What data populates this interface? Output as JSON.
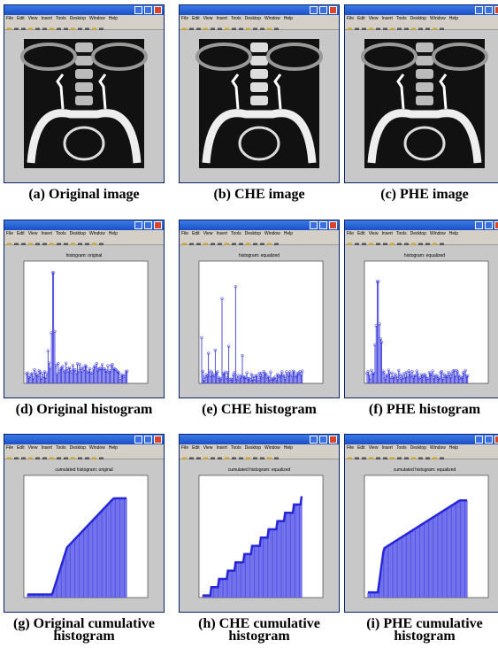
{
  "menu": [
    "File",
    "Edit",
    "View",
    "Insert",
    "Tools",
    "Desktop",
    "Window",
    "Help"
  ],
  "rows": [
    {
      "panels": [
        {
          "caption": "(a) Original image"
        },
        {
          "caption": "(b) CHE image"
        },
        {
          "caption": "(c) PHE image"
        }
      ]
    },
    {
      "panels": [
        {
          "plot_title": "histogram: original",
          "caption": "(d) Original histogram"
        },
        {
          "plot_title": "histogram: equalized",
          "caption": "(e) CHE histogram"
        },
        {
          "plot_title": "histogram: equalized",
          "caption": "(f) PHE histogram"
        }
      ]
    },
    {
      "panels": [
        {
          "plot_title": "cumulated histogram: original",
          "caption": "(g) Original cumulative histogram"
        },
        {
          "plot_title": "cumulated histogram: equalized",
          "caption": "(h) CHE cumulative histogram"
        },
        {
          "plot_title": "cumulated histogram: equalized",
          "caption": "(i) PHE cumulative histogram"
        }
      ]
    }
  ]
}
